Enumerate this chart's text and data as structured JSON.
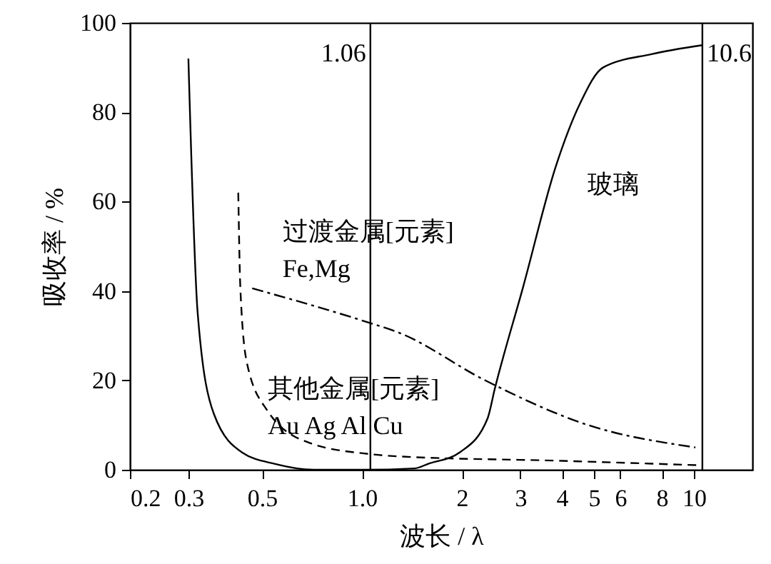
{
  "chart_data": {
    "type": "line",
    "xlabel": "波长 / λ",
    "ylabel": "吸收率 / %",
    "log": "x",
    "xlim": [
      0.2,
      15
    ],
    "xticks": [
      0.2,
      0.3,
      0.5,
      {
        "value": 1,
        "label": "1.0"
      },
      2,
      3,
      4,
      5,
      6,
      8,
      10
    ],
    "ylim": [
      0,
      100
    ],
    "yticks": [
      0,
      20,
      40,
      60,
      80,
      100
    ],
    "grid": false,
    "series": [
      {
        "name": "玻璃",
        "color": "#000000",
        "line_style": "solid",
        "x": [
          0.3,
          0.32,
          0.358,
          0.437,
          0.548,
          0.716,
          1.0,
          1.44,
          1.58,
          1.98,
          2.39,
          2.51,
          3.06,
          3.84,
          4.54,
          5.32,
          7.45,
          10.6
        ],
        "values": [
          92,
          35,
          12.5,
          3.8,
          1.3,
          0,
          0,
          0.3,
          1.3,
          4,
          11.5,
          18,
          41,
          68,
          82,
          90,
          93,
          95
        ]
      },
      {
        "name": "过渡金属[元素] Fe,Mg",
        "color": "#000000",
        "line_style": "dashdot",
        "x": [
          0.467,
          1.04,
          1.29,
          2.35,
          4.8,
          10.1
        ],
        "values": [
          40.6,
          33,
          30.7,
          20,
          10,
          5
        ]
      },
      {
        "name": "其他金属[元素] Au Ag Al Cu",
        "color": "#000000",
        "line_style": "dashed",
        "x": [
          0.424,
          0.43,
          0.45,
          0.517,
          0.695,
          1.06,
          1.28,
          4,
          10.5
        ],
        "values": [
          62,
          41,
          24,
          13.4,
          6,
          3.5,
          3,
          2,
          1
        ]
      }
    ],
    "ref_lines": [
      {
        "axis": "x",
        "value": 1.06,
        "label": "1.06",
        "color": "#000000"
      },
      {
        "axis": "x",
        "value": 10.6,
        "label": "10.6",
        "color": "#000000"
      }
    ]
  }
}
